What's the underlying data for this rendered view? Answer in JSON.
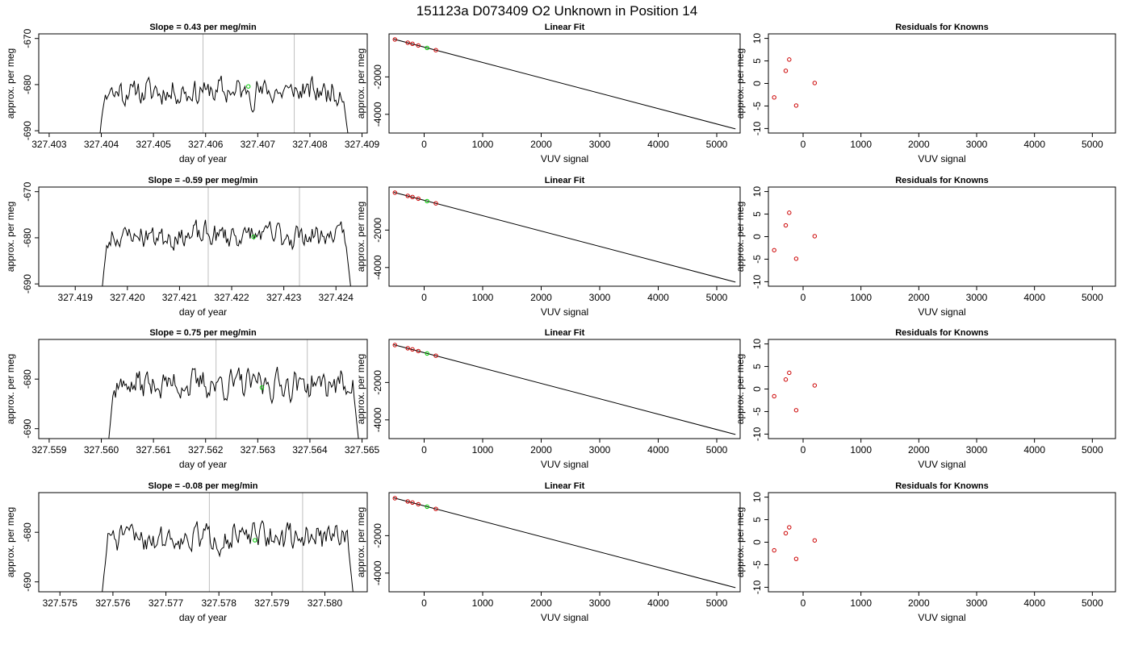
{
  "figure_title": "151123a      D073409   O2 Unknown in Position  14",
  "chart_data": [
    {
      "type": "line",
      "row": 0,
      "col": 0,
      "title": "Slope =  0.43  per meg/min",
      "xlabel": "day of year",
      "ylabel": "approx. per meg",
      "xlim": [
        327.4028,
        327.4091
      ],
      "ylim": [
        -690.5,
        -669
      ],
      "xticks": [
        327.403,
        327.404,
        327.405,
        327.406,
        327.407,
        327.408,
        327.409
      ],
      "xtick_labels": [
        "327.403",
        "327.404",
        "327.405",
        "327.406",
        "327.407",
        "327.408",
        "327.409"
      ],
      "yticks": [
        -690,
        -680,
        -670
      ],
      "ytick_labels": [
        "-690",
        "-680",
        "-670"
      ],
      "vlines": [
        327.40595,
        327.4077
      ],
      "x_start": 327.40395,
      "x_end": 327.40875,
      "level": -681.5,
      "amp": 2.6,
      "seed": 11,
      "marker": {
        "x": 327.40682,
        "y": -680.4
      }
    },
    {
      "type": "scatter",
      "row": 0,
      "col": 1,
      "title": "Linear Fit",
      "xlabel": "VUV signal",
      "ylabel": "approx. per meg",
      "xlim": [
        -600,
        5400
      ],
      "ylim": [
        -5000,
        300
      ],
      "xticks": [
        0,
        1000,
        2000,
        3000,
        4000,
        5000
      ],
      "xtick_labels": [
        "0",
        "1000",
        "2000",
        "3000",
        "4000",
        "5000"
      ],
      "yticks": [
        -4000,
        -2000
      ],
      "ytick_labels": [
        "-4000",
        "-2000"
      ],
      "fit_line": {
        "x": [
          -520,
          5320
        ],
        "y": [
          20,
          -4780
        ]
      },
      "points": [
        {
          "x": -500,
          "y": 0
        },
        {
          "x": -280,
          "y": -170
        },
        {
          "x": -200,
          "y": -230
        },
        {
          "x": -100,
          "y": -320
        },
        {
          "x": 200,
          "y": -570
        }
      ],
      "unknown": {
        "x": 50,
        "y": -450
      }
    },
    {
      "type": "scatter",
      "row": 0,
      "col": 2,
      "title": "Residuals for Knowns",
      "xlabel": "VUV signal",
      "ylabel": "approx. per meg",
      "xlim": [
        -600,
        5400
      ],
      "ylim": [
        -11,
        11
      ],
      "xticks": [
        0,
        1000,
        2000,
        3000,
        4000,
        5000
      ],
      "xtick_labels": [
        "0",
        "1000",
        "2000",
        "3000",
        "4000",
        "5000"
      ],
      "yticks": [
        -10,
        -5,
        0,
        5,
        10
      ],
      "ytick_labels": [
        "-10",
        "-5",
        "0",
        "5",
        "10"
      ],
      "points": [
        {
          "x": -500,
          "y": -3.1
        },
        {
          "x": -300,
          "y": 2.8
        },
        {
          "x": -240,
          "y": 5.3
        },
        {
          "x": -120,
          "y": -4.9
        },
        {
          "x": 200,
          "y": 0.1
        }
      ]
    },
    {
      "type": "line",
      "row": 1,
      "col": 0,
      "title": "Slope =  -0.59  per meg/min",
      "xlabel": "day of year",
      "ylabel": "approx. per meg",
      "xlim": [
        327.4183,
        327.4246
      ],
      "ylim": [
        -690.5,
        -669
      ],
      "xticks": [
        327.419,
        327.42,
        327.421,
        327.422,
        327.423,
        327.424
      ],
      "xtick_labels": [
        "327.419",
        "327.420",
        "327.421",
        "327.422",
        "327.423",
        "327.424"
      ],
      "yticks": [
        -690,
        -680,
        -670
      ],
      "ytick_labels": [
        "-690",
        "-680",
        "-670"
      ],
      "vlines": [
        327.42155,
        327.4233
      ],
      "x_start": 327.4195,
      "x_end": 327.4243,
      "level": -679.5,
      "amp": 2.4,
      "seed": 23,
      "marker": {
        "x": 327.42242,
        "y": -679.8
      }
    },
    {
      "type": "scatter",
      "row": 1,
      "col": 1,
      "title": "Linear Fit",
      "xlabel": "VUV signal",
      "ylabel": "approx. per meg",
      "xlim": [
        -600,
        5400
      ],
      "ylim": [
        -5000,
        300
      ],
      "xticks": [
        0,
        1000,
        2000,
        3000,
        4000,
        5000
      ],
      "xtick_labels": [
        "0",
        "1000",
        "2000",
        "3000",
        "4000",
        "5000"
      ],
      "yticks": [
        -4000,
        -2000
      ],
      "ytick_labels": [
        "-4000",
        "-2000"
      ],
      "fit_line": {
        "x": [
          -520,
          5320
        ],
        "y": [
          20,
          -4780
        ]
      },
      "points": [
        {
          "x": -500,
          "y": 0
        },
        {
          "x": -280,
          "y": -170
        },
        {
          "x": -200,
          "y": -230
        },
        {
          "x": -100,
          "y": -320
        },
        {
          "x": 200,
          "y": -570
        }
      ],
      "unknown": {
        "x": 50,
        "y": -450
      }
    },
    {
      "type": "scatter",
      "row": 1,
      "col": 2,
      "title": "Residuals for Knowns",
      "xlabel": "VUV signal",
      "ylabel": "approx. per meg",
      "xlim": [
        -600,
        5400
      ],
      "ylim": [
        -11,
        11
      ],
      "xticks": [
        0,
        1000,
        2000,
        3000,
        4000,
        5000
      ],
      "xtick_labels": [
        "0",
        "1000",
        "2000",
        "3000",
        "4000",
        "5000"
      ],
      "yticks": [
        -10,
        -5,
        0,
        5,
        10
      ],
      "ytick_labels": [
        "-10",
        "-5",
        "0",
        "5",
        "10"
      ],
      "points": [
        {
          "x": -500,
          "y": -3.0
        },
        {
          "x": -300,
          "y": 2.5
        },
        {
          "x": -240,
          "y": 5.3
        },
        {
          "x": -120,
          "y": -4.9
        },
        {
          "x": 200,
          "y": 0.1
        }
      ]
    },
    {
      "type": "line",
      "row": 2,
      "col": 0,
      "title": "Slope =  0.75  per meg/min",
      "xlabel": "day of year",
      "ylabel": "approx. per meg",
      "xlim": [
        327.5588,
        327.5651
      ],
      "ylim": [
        -692,
        -672
      ],
      "xticks": [
        327.559,
        327.56,
        327.561,
        327.562,
        327.563,
        327.564,
        327.565
      ],
      "xtick_labels": [
        "327.559",
        "327.560",
        "327.561",
        "327.562",
        "327.563",
        "327.564",
        "327.565"
      ],
      "yticks": [
        -690,
        -680
      ],
      "ytick_labels": [
        "-690",
        "-680"
      ],
      "vlines": [
        327.5622,
        327.56395
      ],
      "x_start": 327.56012,
      "x_end": 327.56495,
      "level": -681.0,
      "amp": 2.5,
      "seed": 37,
      "marker": {
        "x": 327.56308,
        "y": -681.7
      }
    },
    {
      "type": "scatter",
      "row": 2,
      "col": 1,
      "title": "Linear Fit",
      "xlabel": "VUV signal",
      "ylabel": "approx. per meg",
      "xlim": [
        -600,
        5400
      ],
      "ylim": [
        -5000,
        300
      ],
      "xticks": [
        0,
        1000,
        2000,
        3000,
        4000,
        5000
      ],
      "xtick_labels": [
        "0",
        "1000",
        "2000",
        "3000",
        "4000",
        "5000"
      ],
      "yticks": [
        -4000,
        -2000
      ],
      "ytick_labels": [
        "-4000",
        "-2000"
      ],
      "fit_line": {
        "x": [
          -520,
          5320
        ],
        "y": [
          20,
          -4780
        ]
      },
      "points": [
        {
          "x": -500,
          "y": 0
        },
        {
          "x": -280,
          "y": -170
        },
        {
          "x": -200,
          "y": -230
        },
        {
          "x": -100,
          "y": -320
        },
        {
          "x": 200,
          "y": -570
        }
      ],
      "unknown": {
        "x": 50,
        "y": -450
      }
    },
    {
      "type": "scatter",
      "row": 2,
      "col": 2,
      "title": "Residuals for Knowns",
      "xlabel": "VUV signal",
      "ylabel": "approx. per meg",
      "xlim": [
        -600,
        5400
      ],
      "ylim": [
        -11,
        11
      ],
      "xticks": [
        0,
        1000,
        2000,
        3000,
        4000,
        5000
      ],
      "xtick_labels": [
        "0",
        "1000",
        "2000",
        "3000",
        "4000",
        "5000"
      ],
      "yticks": [
        -10,
        -5,
        0,
        5,
        10
      ],
      "ytick_labels": [
        "-10",
        "-5",
        "0",
        "5",
        "10"
      ],
      "points": [
        {
          "x": -500,
          "y": -1.6
        },
        {
          "x": -300,
          "y": 2.1
        },
        {
          "x": -240,
          "y": 3.6
        },
        {
          "x": -120,
          "y": -4.7
        },
        {
          "x": 200,
          "y": 0.8
        }
      ]
    },
    {
      "type": "line",
      "row": 3,
      "col": 0,
      "title": "Slope =  -0.08  per meg/min",
      "xlabel": "day of year",
      "ylabel": "approx. per meg",
      "xlim": [
        327.5746,
        327.5808
      ],
      "ylim": [
        -692,
        -672
      ],
      "xticks": [
        327.575,
        327.576,
        327.577,
        327.578,
        327.579,
        327.58
      ],
      "xtick_labels": [
        "327.575",
        "327.576",
        "327.577",
        "327.578",
        "327.579",
        "327.580"
      ],
      "yticks": [
        -690,
        -680
      ],
      "ytick_labels": [
        "-690",
        "-680"
      ],
      "vlines": [
        327.57782,
        327.57958
      ],
      "x_start": 327.57578,
      "x_end": 327.58055,
      "level": -681.0,
      "amp": 2.4,
      "seed": 51,
      "marker": {
        "x": 327.57868,
        "y": -681.6
      }
    },
    {
      "type": "scatter",
      "row": 3,
      "col": 1,
      "title": "Linear Fit",
      "xlabel": "VUV signal",
      "ylabel": "approx. per meg",
      "xlim": [
        -600,
        5400
      ],
      "ylim": [
        -5000,
        300
      ],
      "xticks": [
        0,
        1000,
        2000,
        3000,
        4000,
        5000
      ],
      "xtick_labels": [
        "0",
        "1000",
        "2000",
        "3000",
        "4000",
        "5000"
      ],
      "yticks": [
        -4000,
        -2000
      ],
      "ytick_labels": [
        "-4000",
        "-2000"
      ],
      "fit_line": {
        "x": [
          -520,
          5320
        ],
        "y": [
          20,
          -4780
        ]
      },
      "points": [
        {
          "x": -500,
          "y": 0
        },
        {
          "x": -280,
          "y": -170
        },
        {
          "x": -200,
          "y": -230
        },
        {
          "x": -100,
          "y": -320
        },
        {
          "x": 200,
          "y": -570
        }
      ],
      "unknown": {
        "x": 50,
        "y": -450
      }
    },
    {
      "type": "scatter",
      "row": 3,
      "col": 2,
      "title": "Residuals for Knowns",
      "xlabel": "VUV signal",
      "ylabel": "approx. per meg",
      "xlim": [
        -600,
        5400
      ],
      "ylim": [
        -11,
        11
      ],
      "xticks": [
        0,
        1000,
        2000,
        3000,
        4000,
        5000
      ],
      "xtick_labels": [
        "0",
        "1000",
        "2000",
        "3000",
        "4000",
        "5000"
      ],
      "yticks": [
        -10,
        -5,
        0,
        5,
        10
      ],
      "ytick_labels": [
        "-10",
        "-5",
        "0",
        "5",
        "10"
      ],
      "points": [
        {
          "x": -500,
          "y": -1.8
        },
        {
          "x": -300,
          "y": 2.0
        },
        {
          "x": -240,
          "y": 3.3
        },
        {
          "x": -120,
          "y": -3.7
        },
        {
          "x": 200,
          "y": 0.4
        }
      ]
    }
  ],
  "colors": {
    "line": "#000000",
    "vline": "#bebebe",
    "known": "#cc0000",
    "unknown": "#00cc00",
    "axis": "#000000"
  }
}
